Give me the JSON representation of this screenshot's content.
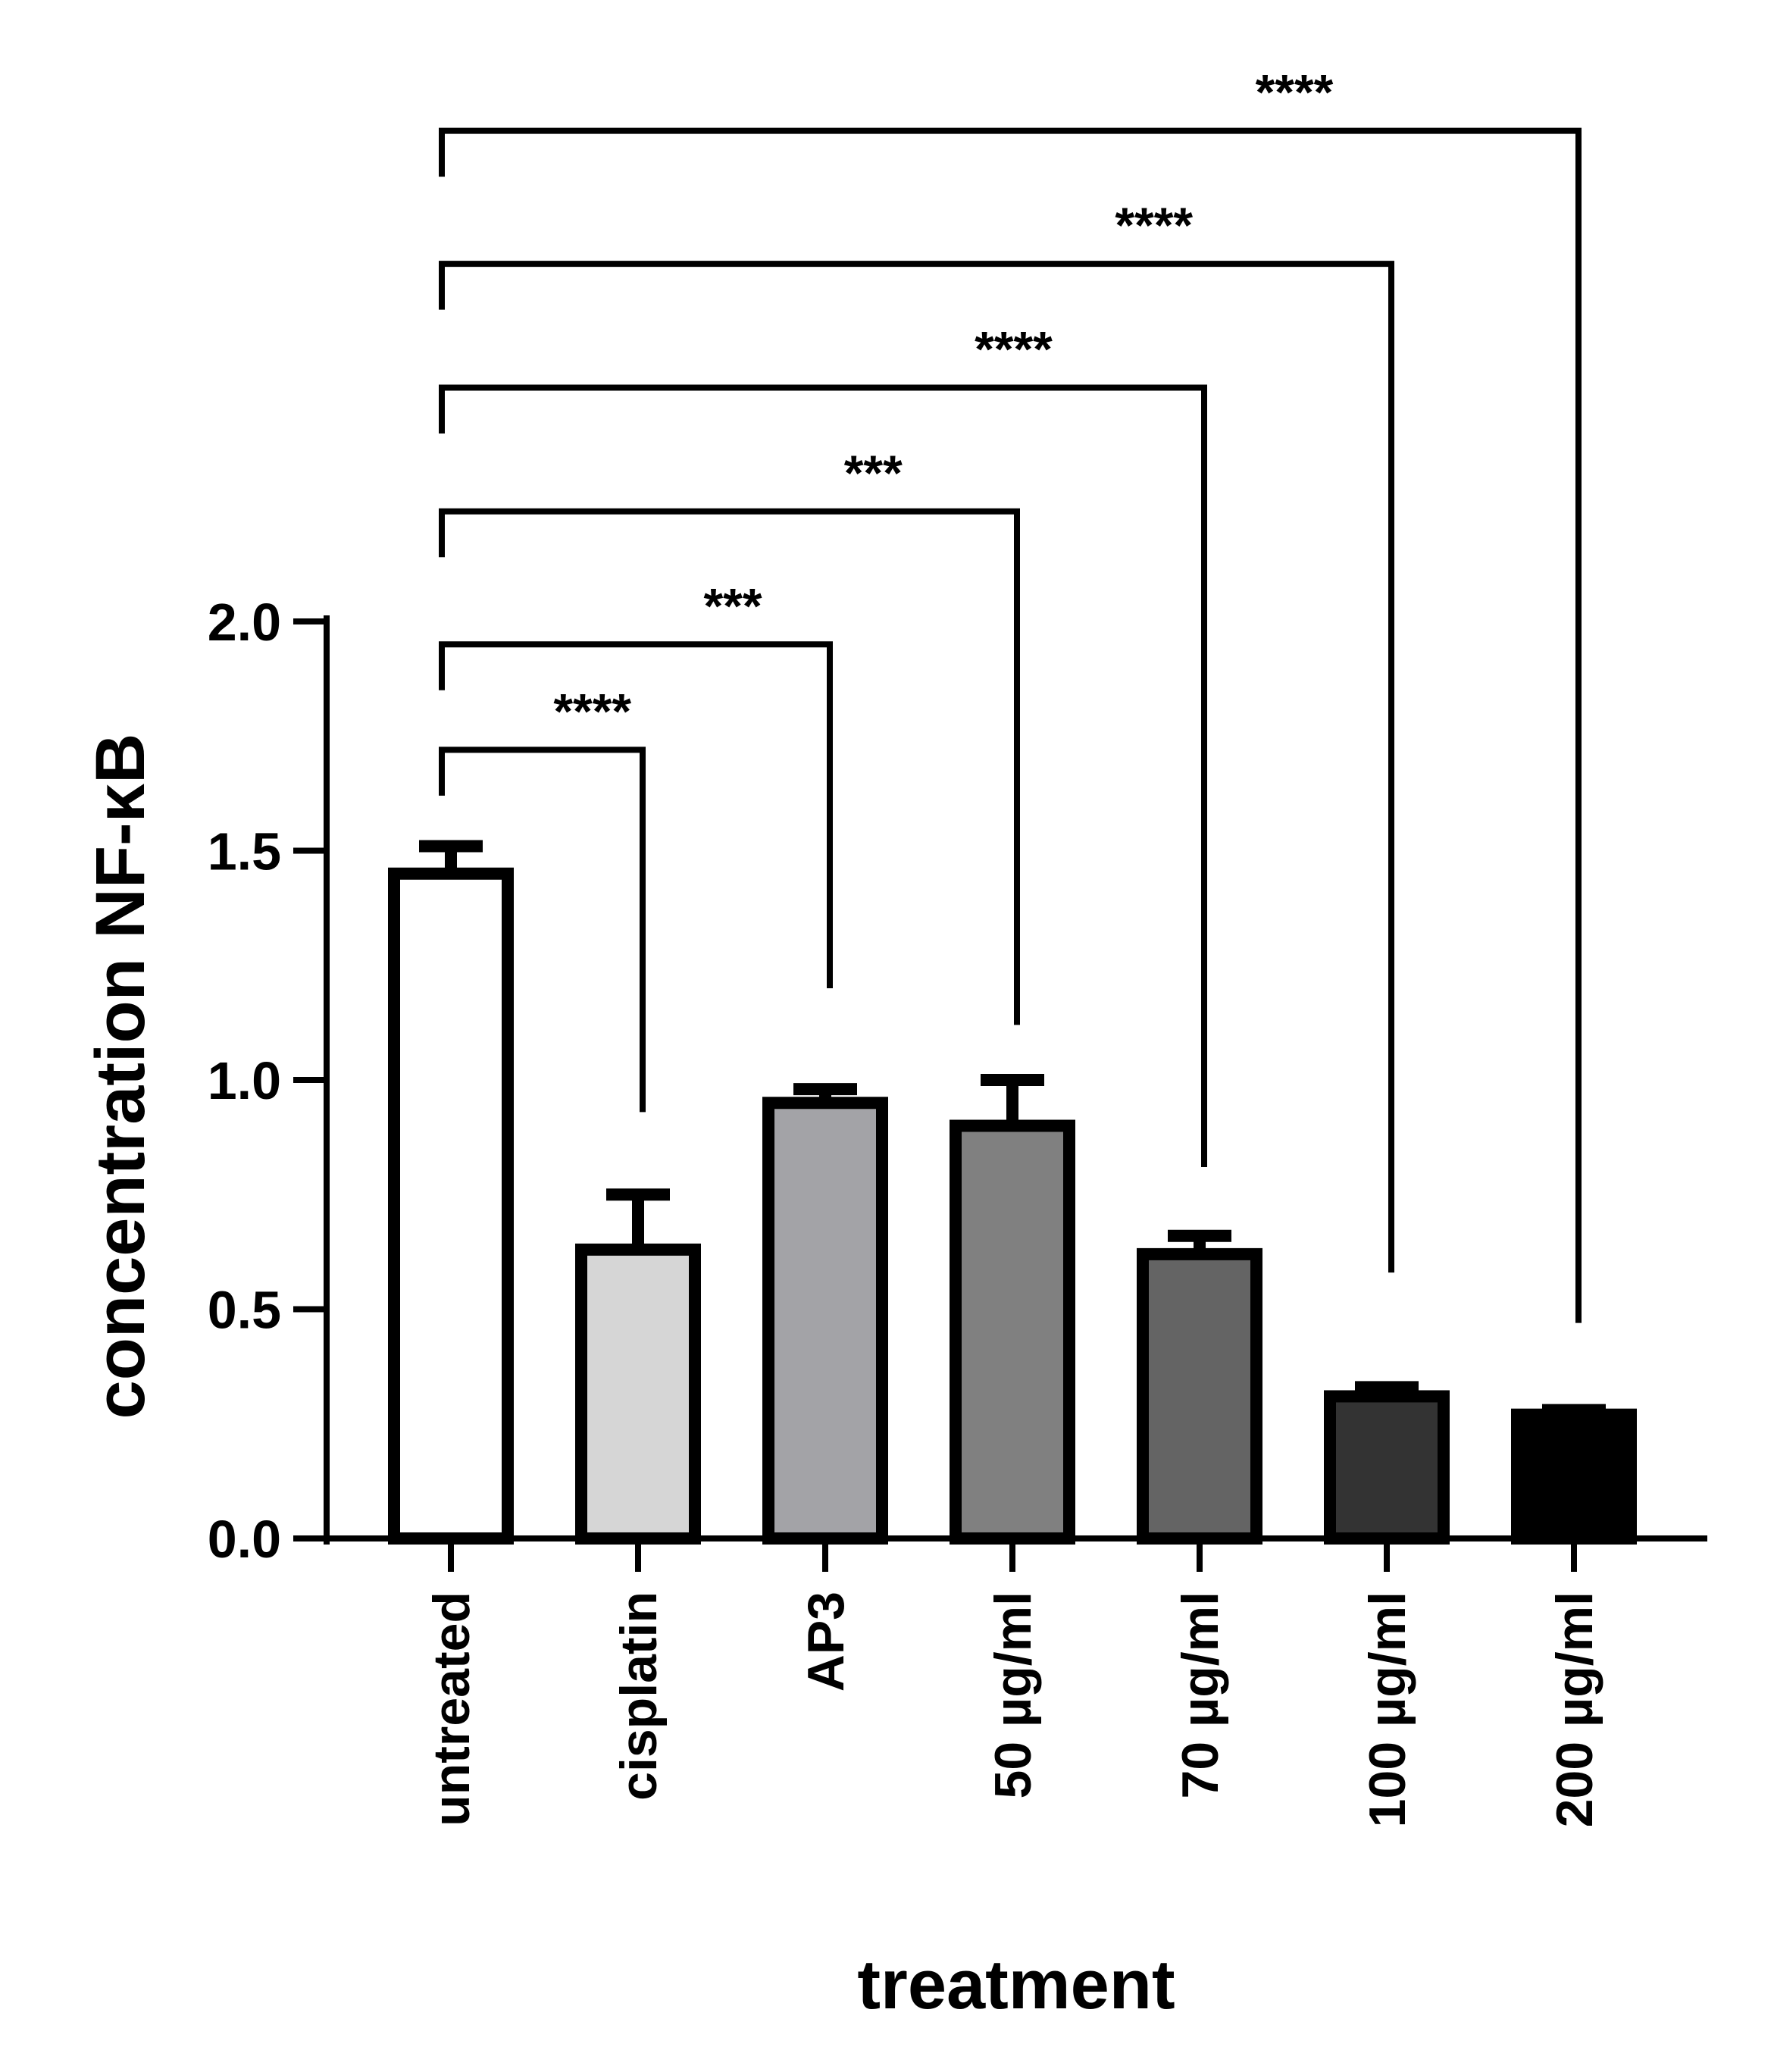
{
  "chart_data": {
    "type": "bar",
    "title": "",
    "xlabel": "treatment",
    "ylabel": "concentration NF-κB",
    "ylim": [
      0,
      2.0
    ],
    "yticks": [
      "0.0",
      "0.5",
      "1.0",
      "1.5",
      "2.0"
    ],
    "ytick_values": [
      0,
      0.5,
      1.0,
      1.5,
      2.0
    ],
    "categories": [
      "untreated",
      "cisplatin",
      "AP3",
      "50 µg/ml",
      "70 µg/ml",
      "100 µg/ml",
      "200 µg/ml"
    ],
    "values": [
      1.45,
      0.63,
      0.95,
      0.9,
      0.62,
      0.31,
      0.27
    ],
    "error_upper": [
      1.51,
      0.75,
      0.98,
      1.0,
      0.66,
      0.33,
      0.28
    ],
    "colors": [
      "#ffffff",
      "#d6d6d6",
      "#a3a3a7",
      "#808080",
      "#646464",
      "#333333",
      "#000000"
    ],
    "comparisons": [
      {
        "from": "untreated",
        "to": "cisplatin",
        "label": "****",
        "level": 1.72,
        "right_end": 0.93
      },
      {
        "from": "untreated",
        "to": "AP3",
        "label": "***",
        "level": 1.95,
        "right_end": 1.2
      },
      {
        "from": "untreated",
        "to": "50 µg/ml",
        "label": "***",
        "level": 2.24,
        "right_end": 1.12
      },
      {
        "from": "untreated",
        "to": "70 µg/ml",
        "label": "****",
        "level": 2.51,
        "right_end": 0.81
      },
      {
        "from": "untreated",
        "to": "100 µg/ml",
        "label": "****",
        "level": 2.78,
        "right_end": 0.58
      },
      {
        "from": "untreated",
        "to": "200 µg/ml",
        "label": "****",
        "level": 3.07,
        "right_end": 0.47
      }
    ]
  }
}
